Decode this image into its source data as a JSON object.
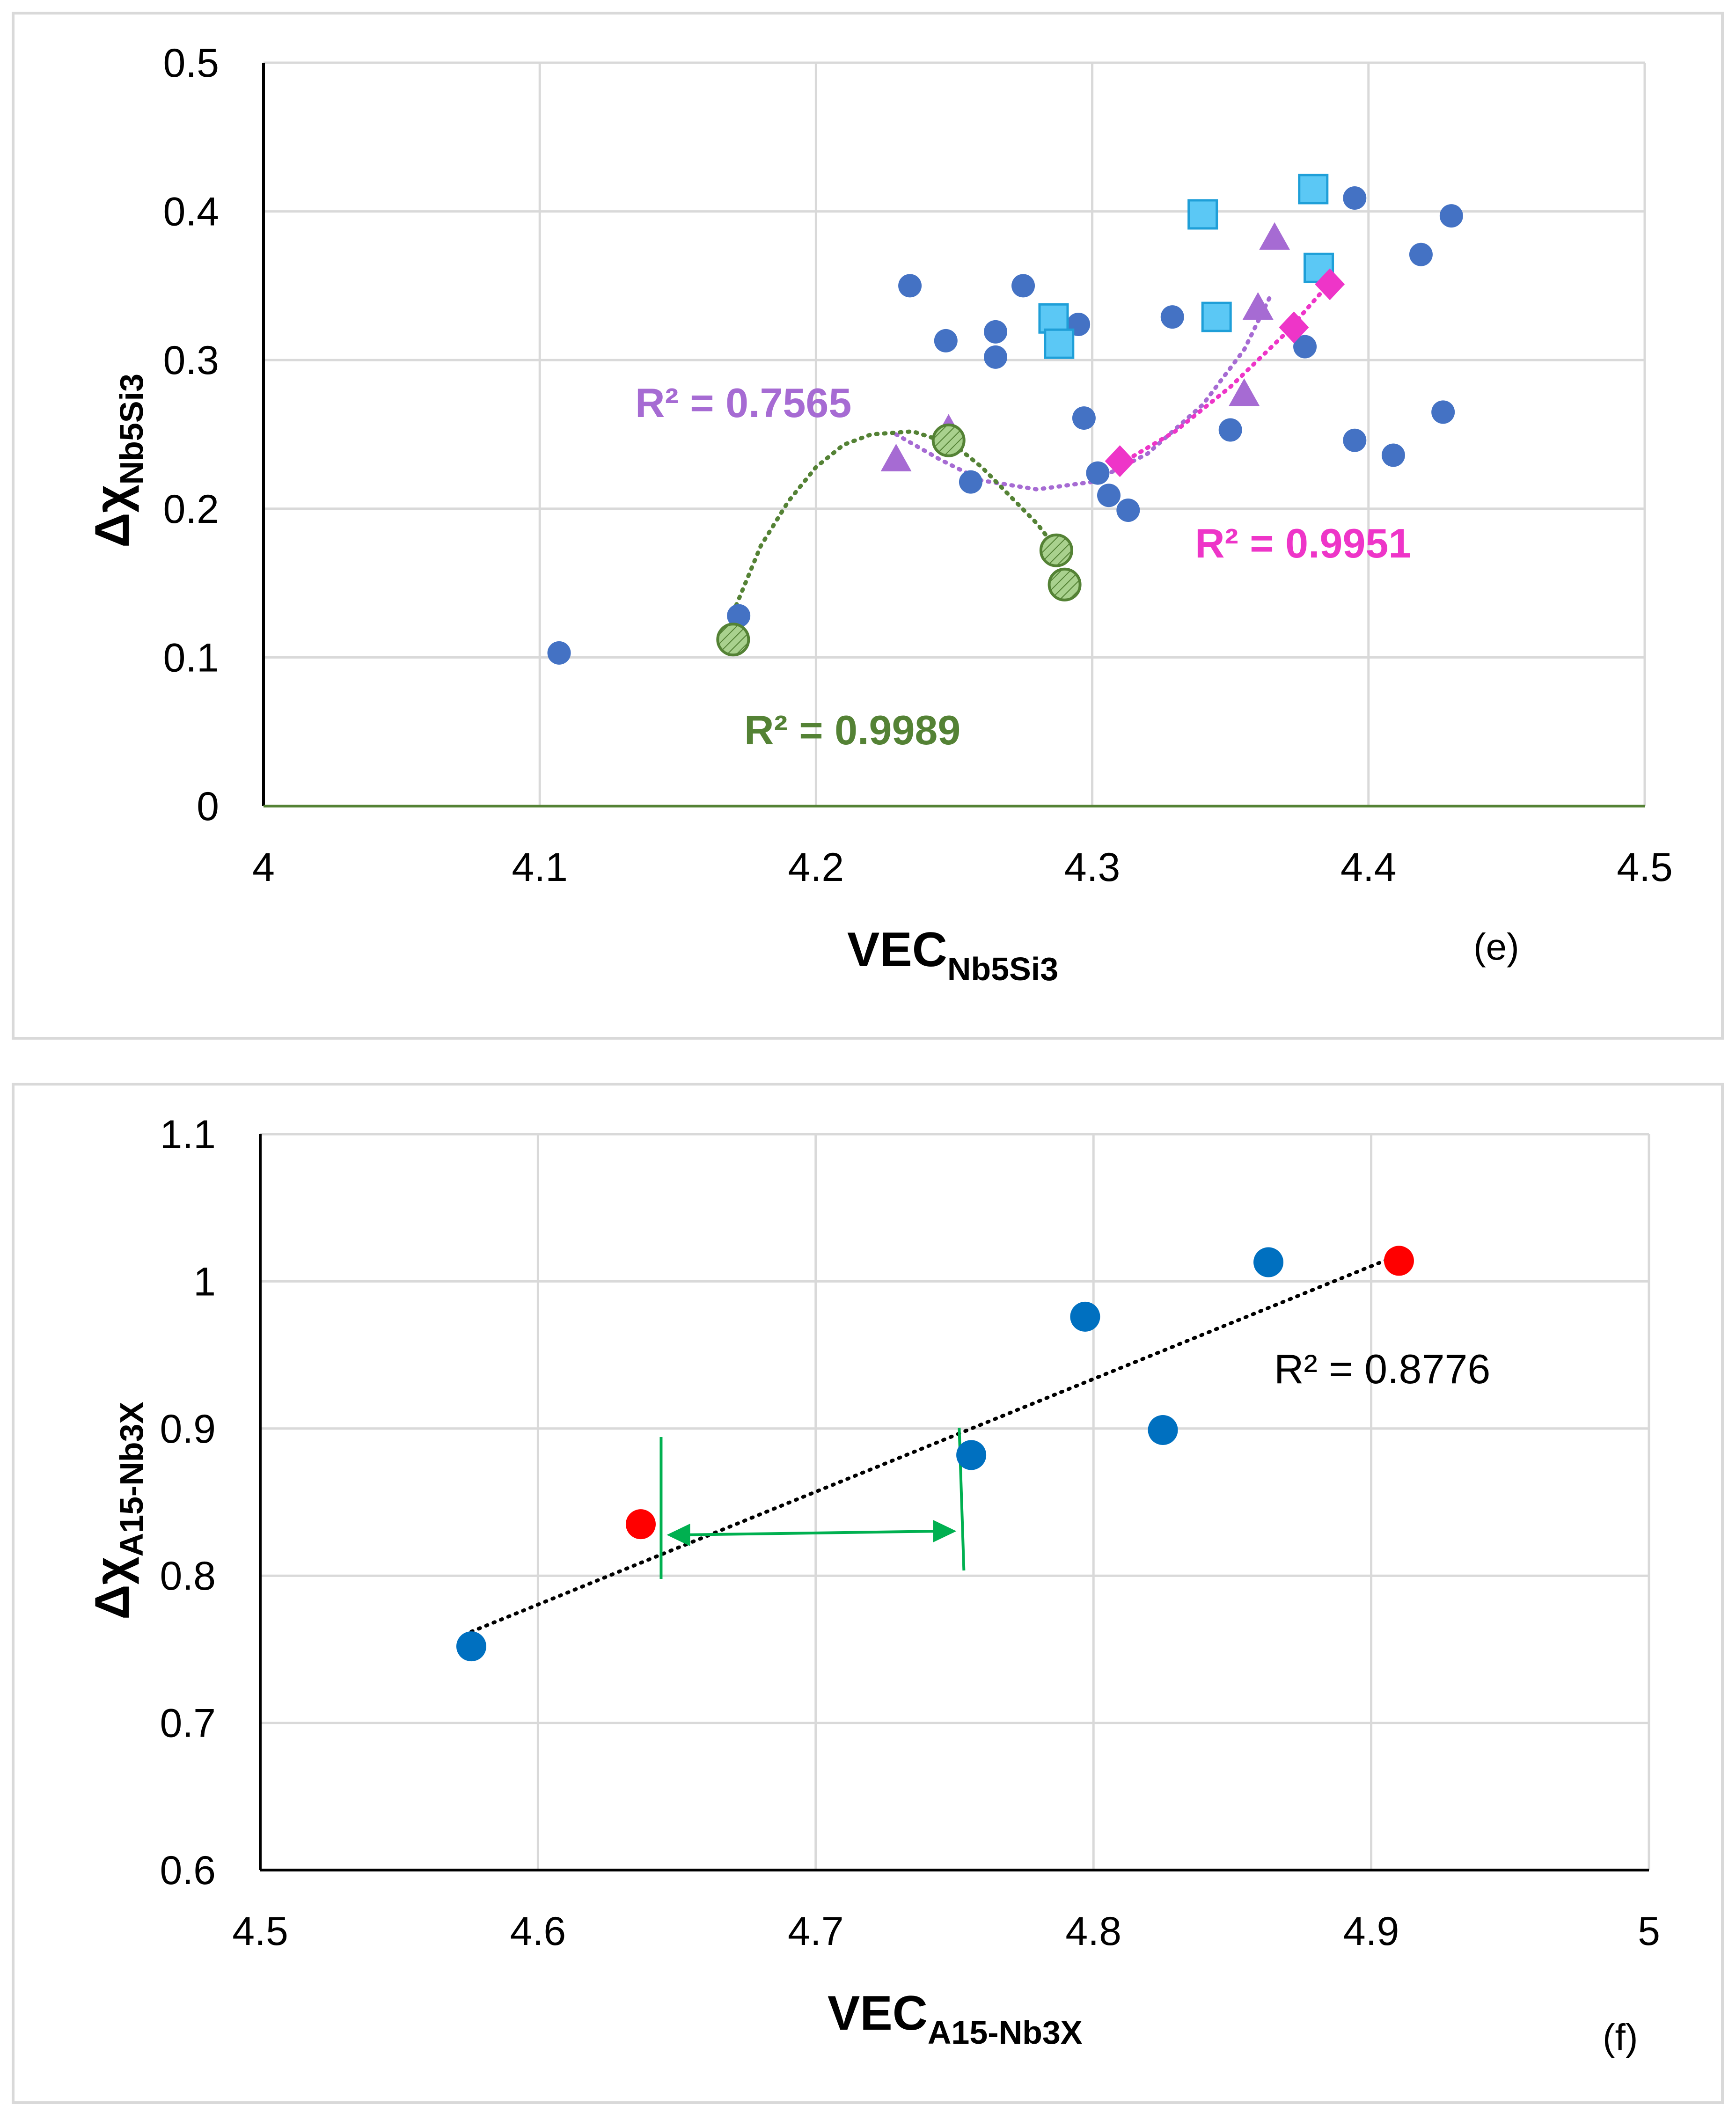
{
  "chart_data": [
    {
      "type": "scatter",
      "panel_label": "(e)",
      "xlabel": "VEC",
      "xlabel_sub": "Nb5Si3",
      "ylabel": "Δχ",
      "ylabel_sub": "Nb5Si3",
      "xlim": [
        4,
        4.5
      ],
      "ylim": [
        0,
        0.5
      ],
      "x_ticks": [
        "4",
        "4.1",
        "4.2",
        "4.3",
        "4.4",
        "4.5"
      ],
      "y_ticks": [
        "0",
        "0.1",
        "0.2",
        "0.3",
        "0.4",
        "0.5"
      ],
      "grid": true,
      "colors": {
        "blue": "#4472c4",
        "cyan": "#5bc8f5",
        "purple": "#a66bd3",
        "magenta": "#ee35c8",
        "green": "#548235",
        "green_fill": "#a9d18e"
      },
      "series": [
        {
          "name": "all",
          "marker": "circle",
          "color": "#4472c4",
          "points": [
            [
              4.107,
              0.103
            ],
            [
              4.172,
              0.128
            ],
            [
              4.234,
              0.35
            ],
            [
              4.247,
              0.313
            ],
            [
              4.256,
              0.218
            ],
            [
              4.265,
              0.319
            ],
            [
              4.265,
              0.302
            ],
            [
              4.275,
              0.35
            ],
            [
              4.295,
              0.324
            ],
            [
              4.297,
              0.261
            ],
            [
              4.302,
              0.224
            ],
            [
              4.306,
              0.209
            ],
            [
              4.313,
              0.199
            ],
            [
              4.329,
              0.329
            ],
            [
              4.35,
              0.253
            ],
            [
              4.377,
              0.309
            ],
            [
              4.395,
              0.409
            ],
            [
              4.395,
              0.246
            ],
            [
              4.409,
              0.236
            ],
            [
              4.419,
              0.371
            ],
            [
              4.427,
              0.265
            ],
            [
              4.43,
              0.397
            ]
          ]
        },
        {
          "name": "squares",
          "marker": "square",
          "color": "#5bc8f5",
          "points": [
            [
              4.286,
              0.328
            ],
            [
              4.288,
              0.311
            ],
            [
              4.34,
              0.398
            ],
            [
              4.345,
              0.329
            ],
            [
              4.38,
              0.415
            ],
            [
              4.382,
              0.362
            ]
          ]
        },
        {
          "name": "triangles",
          "marker": "triangle",
          "color": "#a66bd3",
          "r2": "R² = 0.7565",
          "points": [
            [
              4.229,
              0.233
            ],
            [
              4.248,
              0.253
            ],
            [
              4.355,
              0.277
            ],
            [
              4.36,
              0.335
            ],
            [
              4.366,
              0.382
            ]
          ],
          "trend": [
            [
              4.229,
              0.25
            ],
            [
              4.245,
              0.233
            ],
            [
              4.26,
              0.219
            ],
            [
              4.28,
              0.213
            ],
            [
              4.3,
              0.218
            ],
            [
              4.32,
              0.237
            ],
            [
              4.34,
              0.27
            ],
            [
              4.355,
              0.307
            ],
            [
              4.365,
              0.345
            ]
          ]
        },
        {
          "name": "diamonds",
          "marker": "diamond",
          "color": "#ee35c8",
          "r2": "R² = 0.9951",
          "points": [
            [
              4.31,
              0.232
            ],
            [
              4.373,
              0.322
            ],
            [
              4.386,
              0.351
            ]
          ],
          "trend": [
            [
              4.31,
              0.23
            ],
            [
              4.33,
              0.252
            ],
            [
              4.35,
              0.282
            ],
            [
              4.37,
              0.318
            ],
            [
              4.386,
              0.352
            ]
          ]
        },
        {
          "name": "green circles",
          "marker": "circle-hatched",
          "color": "#548235",
          "r2": "R² = 0.9989",
          "points": [
            [
              4.17,
              0.112
            ],
            [
              4.248,
              0.246
            ],
            [
              4.287,
              0.172
            ],
            [
              4.29,
              0.149
            ]
          ],
          "trend": [
            [
              4.17,
              0.13
            ],
            [
              4.18,
              0.175
            ],
            [
              4.19,
              0.205
            ],
            [
              4.2,
              0.228
            ],
            [
              4.21,
              0.243
            ],
            [
              4.22,
              0.25
            ],
            [
              4.235,
              0.252
            ],
            [
              4.25,
              0.243
            ],
            [
              4.26,
              0.228
            ],
            [
              4.27,
              0.209
            ],
            [
              4.28,
              0.19
            ],
            [
              4.29,
              0.166
            ]
          ]
        }
      ]
    },
    {
      "type": "scatter",
      "panel_label": "(f)",
      "xlabel": "VEC",
      "xlabel_sub": "A15-Nb3X",
      "ylabel": "Δχ",
      "ylabel_sub": "A15-Nb3X",
      "xlim": [
        4.5,
        5
      ],
      "ylim": [
        0.6,
        1.1
      ],
      "x_ticks": [
        "4.5",
        "4.6",
        "4.7",
        "4.8",
        "4.9",
        "5"
      ],
      "y_ticks": [
        "0.6",
        "0.7",
        "0.8",
        "0.9",
        "1",
        "1.1"
      ],
      "grid": true,
      "colors": {
        "blue": "#0070c0",
        "red": "#ff0000",
        "arrow": "#00b050"
      },
      "r2": "R² = 0.8776",
      "series": [
        {
          "name": "blue",
          "marker": "circle",
          "color": "#0070c0",
          "points": [
            [
              4.576,
              0.752
            ],
            [
              4.756,
              0.882
            ],
            [
              4.797,
              0.976
            ],
            [
              4.825,
              0.899
            ],
            [
              4.863,
              1.013
            ]
          ]
        },
        {
          "name": "red",
          "marker": "circle",
          "color": "#ff0000",
          "points": [
            [
              4.637,
              0.835
            ],
            [
              4.91,
              1.014
            ]
          ]
        }
      ],
      "trend": [
        [
          4.576,
          0.762
        ],
        [
          4.91,
          1.018
        ]
      ],
      "range_arrow": {
        "x_from": 4.645,
        "x_to": 4.752,
        "y": 0.829
      }
    }
  ]
}
